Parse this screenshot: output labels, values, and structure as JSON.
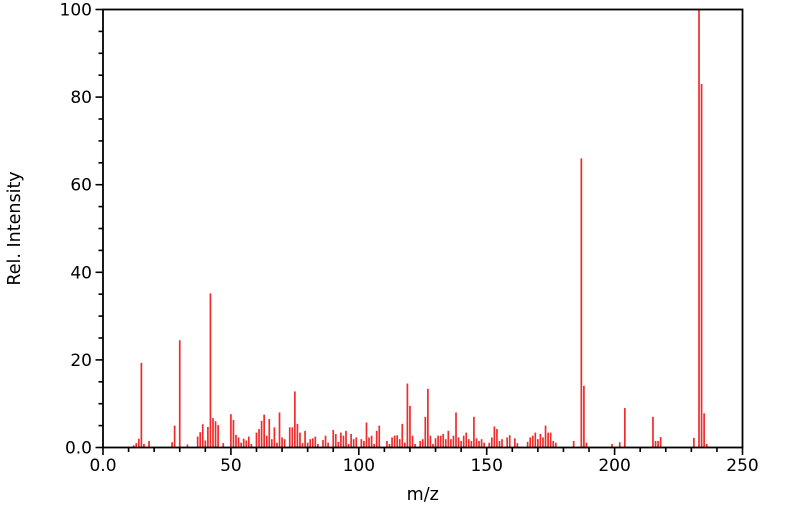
{
  "chart_data": {
    "type": "bar",
    "subtype": "mass-spectrum-stick-plot",
    "title": "",
    "xlabel": "m/z",
    "ylabel": "Rel. Intensity",
    "xlim": [
      0,
      250
    ],
    "ylim": [
      0,
      100
    ],
    "grid": false,
    "legend": "none",
    "bar_color": "#f02b2b",
    "axis_color": "#000000",
    "background_color": "#ffffff",
    "x_major_ticks": [
      {
        "v": 0,
        "label": "0.0"
      },
      {
        "v": 50,
        "label": "50"
      },
      {
        "v": 100,
        "label": "100"
      },
      {
        "v": 150,
        "label": "150"
      },
      {
        "v": 200,
        "label": "200"
      },
      {
        "v": 250,
        "label": "250"
      }
    ],
    "x_minor_step": 10,
    "y_major_ticks": [
      {
        "v": 0,
        "label": "0.0"
      },
      {
        "v": 20,
        "label": "20"
      },
      {
        "v": 40,
        "label": "40"
      },
      {
        "v": 60,
        "label": "60"
      },
      {
        "v": 80,
        "label": "80"
      },
      {
        "v": 100,
        "label": "100"
      }
    ],
    "y_minor_step": 5,
    "peaks": [
      [
        12,
        0.5
      ],
      [
        13,
        1.0
      ],
      [
        14,
        2.0
      ],
      [
        15,
        19.3
      ],
      [
        16,
        0.8
      ],
      [
        18,
        1.5
      ],
      [
        27,
        1.2
      ],
      [
        28,
        5.0
      ],
      [
        30,
        24.5
      ],
      [
        33,
        0.7
      ],
      [
        37,
        2.5
      ],
      [
        38,
        3.5
      ],
      [
        39,
        5.3
      ],
      [
        40,
        1.6
      ],
      [
        41,
        4.7
      ],
      [
        42,
        35.2
      ],
      [
        43,
        6.7
      ],
      [
        44,
        6.0
      ],
      [
        45,
        5.1
      ],
      [
        47,
        1.0
      ],
      [
        50,
        7.6
      ],
      [
        51,
        6.3
      ],
      [
        52,
        2.9
      ],
      [
        53,
        2.3
      ],
      [
        54,
        1.1
      ],
      [
        55,
        2.0
      ],
      [
        56,
        1.6
      ],
      [
        57,
        2.5
      ],
      [
        58,
        0.8
      ],
      [
        60,
        3.4
      ],
      [
        61,
        4.2
      ],
      [
        62,
        6.1
      ],
      [
        63,
        7.5
      ],
      [
        64,
        2.7
      ],
      [
        65,
        6.5
      ],
      [
        66,
        1.9
      ],
      [
        67,
        4.6
      ],
      [
        68,
        1.1
      ],
      [
        69,
        8.0
      ],
      [
        70,
        2.3
      ],
      [
        71,
        1.9
      ],
      [
        73,
        4.6
      ],
      [
        74,
        4.6
      ],
      [
        75,
        12.8
      ],
      [
        76,
        5.4
      ],
      [
        77,
        3.4
      ],
      [
        78,
        1.0
      ],
      [
        79,
        3.8
      ],
      [
        80,
        1.1
      ],
      [
        81,
        1.9
      ],
      [
        82,
        2.1
      ],
      [
        83,
        2.5
      ],
      [
        84,
        0.8
      ],
      [
        86,
        1.7
      ],
      [
        87,
        2.7
      ],
      [
        88,
        1.1
      ],
      [
        90,
        4.0
      ],
      [
        91,
        3.1
      ],
      [
        92,
        1.3
      ],
      [
        93,
        3.4
      ],
      [
        94,
        2.7
      ],
      [
        95,
        3.8
      ],
      [
        96,
        0.8
      ],
      [
        97,
        3.1
      ],
      [
        98,
        1.9
      ],
      [
        99,
        2.3
      ],
      [
        101,
        1.9
      ],
      [
        102,
        1.5
      ],
      [
        103,
        5.7
      ],
      [
        104,
        2.3
      ],
      [
        105,
        2.7
      ],
      [
        106,
        0.8
      ],
      [
        107,
        3.8
      ],
      [
        108,
        5.0
      ],
      [
        111,
        1.5
      ],
      [
        112,
        0.8
      ],
      [
        113,
        2.3
      ],
      [
        114,
        2.7
      ],
      [
        115,
        2.8
      ],
      [
        116,
        1.9
      ],
      [
        117,
        5.4
      ],
      [
        118,
        1.1
      ],
      [
        119,
        14.6
      ],
      [
        120,
        9.5
      ],
      [
        121,
        2.7
      ],
      [
        122,
        0.8
      ],
      [
        124,
        1.5
      ],
      [
        125,
        1.9
      ],
      [
        126,
        7.0
      ],
      [
        127,
        13.4
      ],
      [
        128,
        2.7
      ],
      [
        129,
        0.8
      ],
      [
        130,
        2.1
      ],
      [
        131,
        2.7
      ],
      [
        132,
        2.7
      ],
      [
        133,
        3.1
      ],
      [
        134,
        1.9
      ],
      [
        135,
        3.8
      ],
      [
        136,
        1.9
      ],
      [
        137,
        2.7
      ],
      [
        138,
        8.0
      ],
      [
        139,
        2.3
      ],
      [
        140,
        1.5
      ],
      [
        141,
        2.7
      ],
      [
        142,
        3.4
      ],
      [
        143,
        1.9
      ],
      [
        144,
        1.5
      ],
      [
        145,
        7.0
      ],
      [
        146,
        2.1
      ],
      [
        147,
        1.5
      ],
      [
        148,
        1.9
      ],
      [
        149,
        1.1
      ],
      [
        151,
        1.1
      ],
      [
        152,
        2.3
      ],
      [
        153,
        4.8
      ],
      [
        154,
        4.2
      ],
      [
        155,
        1.5
      ],
      [
        156,
        1.9
      ],
      [
        158,
        2.3
      ],
      [
        159,
        2.8
      ],
      [
        161,
        2.1
      ],
      [
        162,
        1.0
      ],
      [
        166,
        1.3
      ],
      [
        167,
        2.3
      ],
      [
        168,
        2.7
      ],
      [
        169,
        3.4
      ],
      [
        170,
        1.9
      ],
      [
        171,
        3.1
      ],
      [
        172,
        2.3
      ],
      [
        173,
        5.0
      ],
      [
        174,
        3.4
      ],
      [
        175,
        3.4
      ],
      [
        176,
        1.5
      ],
      [
        177,
        1.1
      ],
      [
        184,
        1.5
      ],
      [
        187,
        66.0
      ],
      [
        188,
        14.1
      ],
      [
        189,
        1.1
      ],
      [
        199,
        0.8
      ],
      [
        202,
        1.2
      ],
      [
        204,
        9.0
      ],
      [
        215,
        7.0
      ],
      [
        216,
        1.5
      ],
      [
        217,
        1.5
      ],
      [
        218,
        2.4
      ],
      [
        231,
        2.2
      ],
      [
        233,
        100.0
      ],
      [
        234,
        83.0
      ],
      [
        235,
        7.8
      ],
      [
        236,
        0.8
      ]
    ]
  }
}
